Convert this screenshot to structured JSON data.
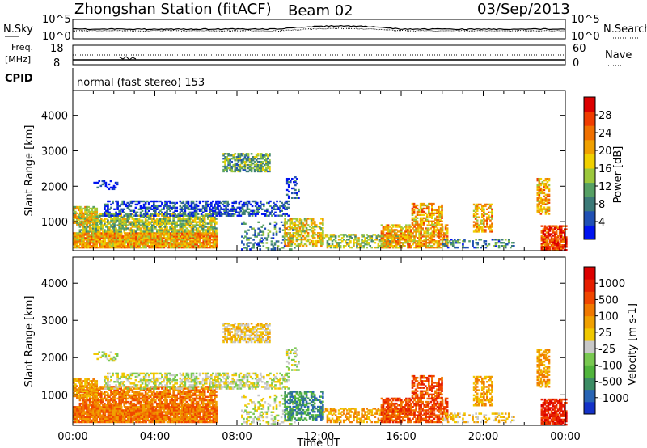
{
  "header": {
    "station": "Zhongshan Station (fitACF)",
    "beam": "Beam 02",
    "date": "03/Sep/2013"
  },
  "strips": {
    "nsky_label": "N.Sky",
    "nsearch_label": "N.Search",
    "nsky_ticks": [
      "10^5",
      "10^0"
    ],
    "nsearch_ticks": [
      "10^5",
      "10^0"
    ],
    "freq_label_top": "Freq.",
    "freq_label_unit": "[MHz]",
    "freq_ticks": [
      "18",
      "8"
    ],
    "nave_label": "Nave",
    "nave_ticks": [
      "60",
      "0"
    ],
    "cpid_label": "CPID",
    "cpid_value": "normal (fast stereo) 153"
  },
  "chart_data": [
    {
      "type": "heatmap",
      "name": "power",
      "xlabel": "Time UT",
      "ylabel": "Slant Range [km]",
      "x_ticks": [
        "00:00",
        "04:00",
        "08:00",
        "12:00",
        "16:00",
        "20:00",
        "00:00"
      ],
      "y_ticks": [
        "1000",
        "2000",
        "3000",
        "4000"
      ],
      "xlim": [
        0,
        24
      ],
      "ylim": [
        180,
        4700
      ],
      "colorbar_label": "Power [dB]",
      "colorbar_ticks": [
        "4",
        "8",
        "12",
        "16",
        "20",
        "24",
        "28"
      ],
      "colorbar_colors": [
        "#0014f0",
        "#2050b4",
        "#3c7a78",
        "#56a064",
        "#9cc83c",
        "#f0d000",
        "#f0a000",
        "#f07000",
        "#f03c00",
        "#dc0000"
      ]
    },
    {
      "type": "heatmap",
      "name": "velocity",
      "xlabel": "Time UT",
      "ylabel": "Slant Range [km]",
      "x_ticks": [
        "00:00",
        "04:00",
        "08:00",
        "12:00",
        "16:00",
        "20:00",
        "00:00"
      ],
      "y_ticks": [
        "1000",
        "2000",
        "3000",
        "4000"
      ],
      "xlim": [
        0,
        24
      ],
      "ylim": [
        180,
        4700
      ],
      "colorbar_label": "Velocity [m s-1]",
      "colorbar_ticks": [
        "1000",
        "500",
        "100",
        "25",
        "-25",
        "-100",
        "-500",
        "-1000"
      ],
      "colorbar_colors": [
        "#1432c8",
        "#2864b4",
        "#3c8c64",
        "#50b43c",
        "#78c850",
        "#c8c8c8",
        "#f0c800",
        "#f0a000",
        "#f07800",
        "#f04600",
        "#e61e00",
        "#dc0000"
      ]
    }
  ]
}
